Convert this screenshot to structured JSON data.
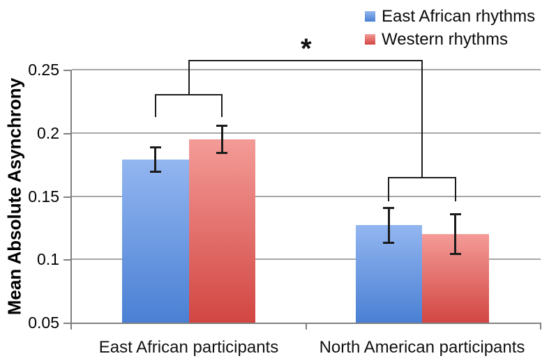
{
  "chart_data": {
    "type": "bar",
    "title": "",
    "ylabel": "Mean Absolute Asynchrony",
    "xlabel": "",
    "categories": [
      "East African participants",
      "North American participants"
    ],
    "series": [
      {
        "name": "East African rhythms",
        "values": [
          0.179,
          0.127
        ],
        "errors": [
          0.01,
          0.014
        ],
        "color": "#4A80D4",
        "color_light": "#93B6F0"
      },
      {
        "name": "Western rhythms",
        "values": [
          0.195,
          0.12
        ],
        "errors": [
          0.011,
          0.016
        ],
        "color": "#D24642",
        "color_light": "#F49B97"
      }
    ],
    "ylim": [
      0.05,
      0.25
    ],
    "yticks": [
      0.25,
      0.2,
      0.15,
      0.1,
      0.05
    ],
    "ytick_labels": [
      "0.25",
      "0.2",
      "0.15",
      "0.1",
      "0.05"
    ],
    "grid": true,
    "error_bars": true,
    "legend_position": "top-right",
    "significance": {
      "label": "*",
      "connects": [
        "East African participants",
        "North American participants"
      ]
    },
    "colors": {
      "gridline": "#a6a6a6",
      "axis": "#7f7f7f",
      "annotation": "#1b1b1b"
    }
  }
}
